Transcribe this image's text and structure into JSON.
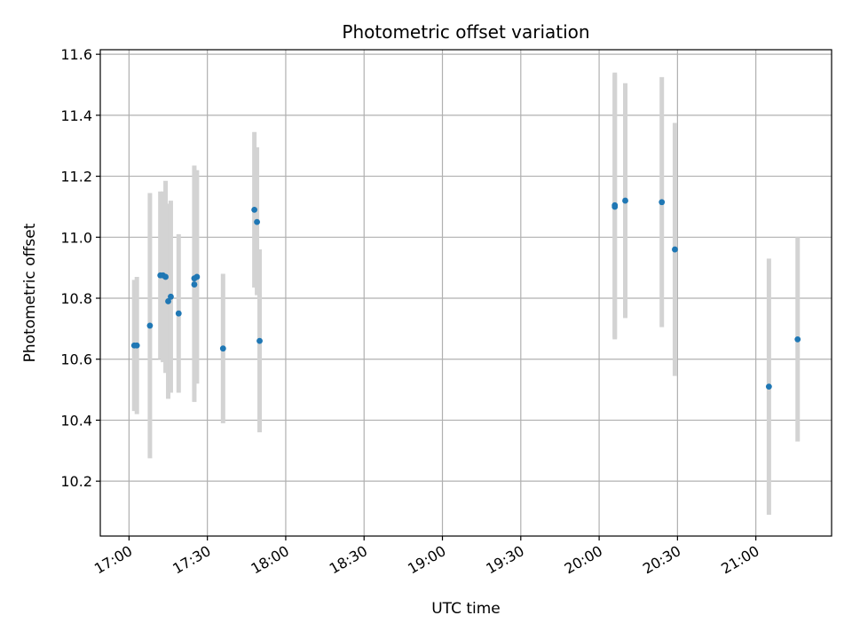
{
  "chart_data": {
    "type": "scatter",
    "title": "Photometric offset variation",
    "xlabel": "UTC time",
    "ylabel": "Photometric offset",
    "x_axis": {
      "kind": "time",
      "range": [
        "16:49",
        "21:29"
      ],
      "ticks": [
        "17:00",
        "17:30",
        "18:00",
        "18:30",
        "19:00",
        "19:30",
        "20:00",
        "20:30",
        "21:00"
      ]
    },
    "y_axis": {
      "range": [
        10.02,
        11.615
      ],
      "ticks": [
        "10.2",
        "10.4",
        "10.6",
        "10.8",
        "11.0",
        "11.2",
        "11.4",
        "11.6"
      ]
    },
    "grid": true,
    "colors": {
      "points": "#1f77b4",
      "error_bars": "#d3d3d3"
    },
    "points": [
      {
        "t": "17:02",
        "y": 10.645,
        "lo": 10.43,
        "hi": 10.86
      },
      {
        "t": "17:03",
        "y": 10.645,
        "lo": 10.42,
        "hi": 10.87
      },
      {
        "t": "17:08",
        "y": 10.71,
        "lo": 10.275,
        "hi": 11.145
      },
      {
        "t": "17:12",
        "y": 10.875,
        "lo": 10.6,
        "hi": 11.15
      },
      {
        "t": "17:13",
        "y": 10.875,
        "lo": 10.59,
        "hi": 11.15
      },
      {
        "t": "17:14",
        "y": 10.87,
        "lo": 10.555,
        "hi": 11.185
      },
      {
        "t": "17:15",
        "y": 10.79,
        "lo": 10.47,
        "hi": 11.11
      },
      {
        "t": "17:16",
        "y": 10.805,
        "lo": 10.49,
        "hi": 11.12
      },
      {
        "t": "17:19",
        "y": 10.75,
        "lo": 10.49,
        "hi": 11.01
      },
      {
        "t": "17:25",
        "y": 10.845,
        "lo": 10.46,
        "hi": 11.23
      },
      {
        "t": "17:25",
        "y": 10.865,
        "lo": 10.495,
        "hi": 11.235
      },
      {
        "t": "17:26",
        "y": 10.87,
        "lo": 10.52,
        "hi": 11.22
      },
      {
        "t": "17:36",
        "y": 10.635,
        "lo": 10.39,
        "hi": 10.88
      },
      {
        "t": "17:48",
        "y": 11.09,
        "lo": 10.835,
        "hi": 11.345
      },
      {
        "t": "17:49",
        "y": 11.05,
        "lo": 10.81,
        "hi": 11.295
      },
      {
        "t": "17:50",
        "y": 10.66,
        "lo": 10.36,
        "hi": 10.96
      },
      {
        "t": "20:06",
        "y": 11.105,
        "lo": 10.67,
        "hi": 11.54
      },
      {
        "t": "20:06",
        "y": 11.1,
        "lo": 10.665,
        "hi": 11.535
      },
      {
        "t": "20:10",
        "y": 11.12,
        "lo": 10.735,
        "hi": 11.505
      },
      {
        "t": "20:24",
        "y": 11.115,
        "lo": 10.705,
        "hi": 11.525
      },
      {
        "t": "20:29",
        "y": 10.96,
        "lo": 10.545,
        "hi": 11.375
      },
      {
        "t": "21:05",
        "y": 10.51,
        "lo": 10.09,
        "hi": 10.93
      },
      {
        "t": "21:16",
        "y": 10.665,
        "lo": 10.33,
        "hi": 11.0
      }
    ]
  }
}
